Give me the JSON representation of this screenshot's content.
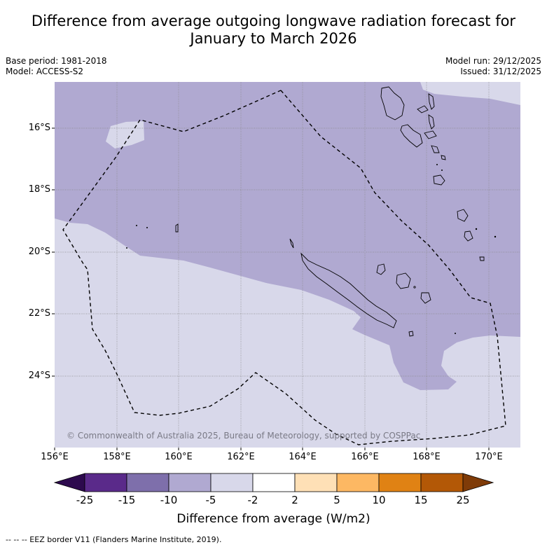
{
  "title_line1": "Difference from average outgoing longwave radiation forecast for",
  "title_line2": "January to March 2026",
  "base_period": "Base period: 1981-2018",
  "model": "Model: ACCESS-S2",
  "model_run": "Model run: 29/12/2025",
  "issued": "Issued: 31/12/2025",
  "latitude_labels": [
    "16°S",
    "18°S",
    "20°S",
    "22°S",
    "24°S"
  ],
  "longitude_labels": [
    "156°E",
    "158°E",
    "160°E",
    "162°E",
    "164°E",
    "166°E",
    "168°E",
    "170°E"
  ],
  "copyright": "© Commonwealth of Australia 2025, Bureau of Meteorology, supported by COSPPac",
  "colorbar": {
    "title": "Difference from average (W/m2)",
    "ticks": [
      "-25",
      "-15",
      "-10",
      "-5",
      "-2",
      "2",
      "5",
      "10",
      "15",
      "25"
    ],
    "colors": [
      "#2d0a4e",
      "#5a2a8a",
      "#7e6fab",
      "#b0a9d1",
      "#d8d8ea",
      "#ffffff",
      "#fee0b6",
      "#fdb863",
      "#e08214",
      "#b35806",
      "#7f3b08"
    ]
  },
  "map_colors": {
    "below_average_moderate": "#b0a9d1",
    "below_average_slight": "#d8d8ea"
  },
  "footnote": "--  --  -- EEZ border V11 (Flanders Marine Institute, 2019)."
}
